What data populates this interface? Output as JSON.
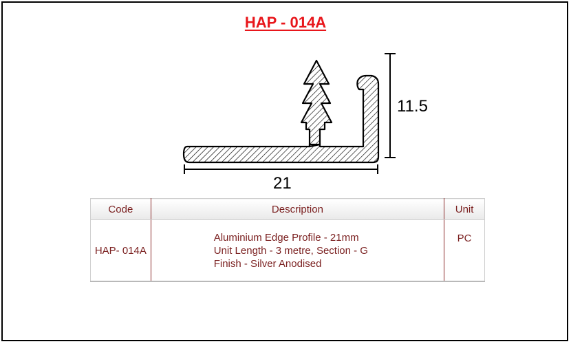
{
  "title": "HAP - 014A",
  "dimensions": {
    "height": "11.5",
    "width": "21"
  },
  "table": {
    "headers": {
      "code": "Code",
      "description": "Description",
      "unit": "Unit"
    },
    "rows": [
      {
        "code": "HAP- 014A",
        "description": [
          "Aluminium Edge Profile - 21mm",
          "Unit Length - 3 metre, Section - G",
          "Finish - Silver Anodised"
        ],
        "unit": "PC"
      }
    ]
  },
  "colors": {
    "title": "#e8161b",
    "table_text": "#7a1f1f"
  }
}
